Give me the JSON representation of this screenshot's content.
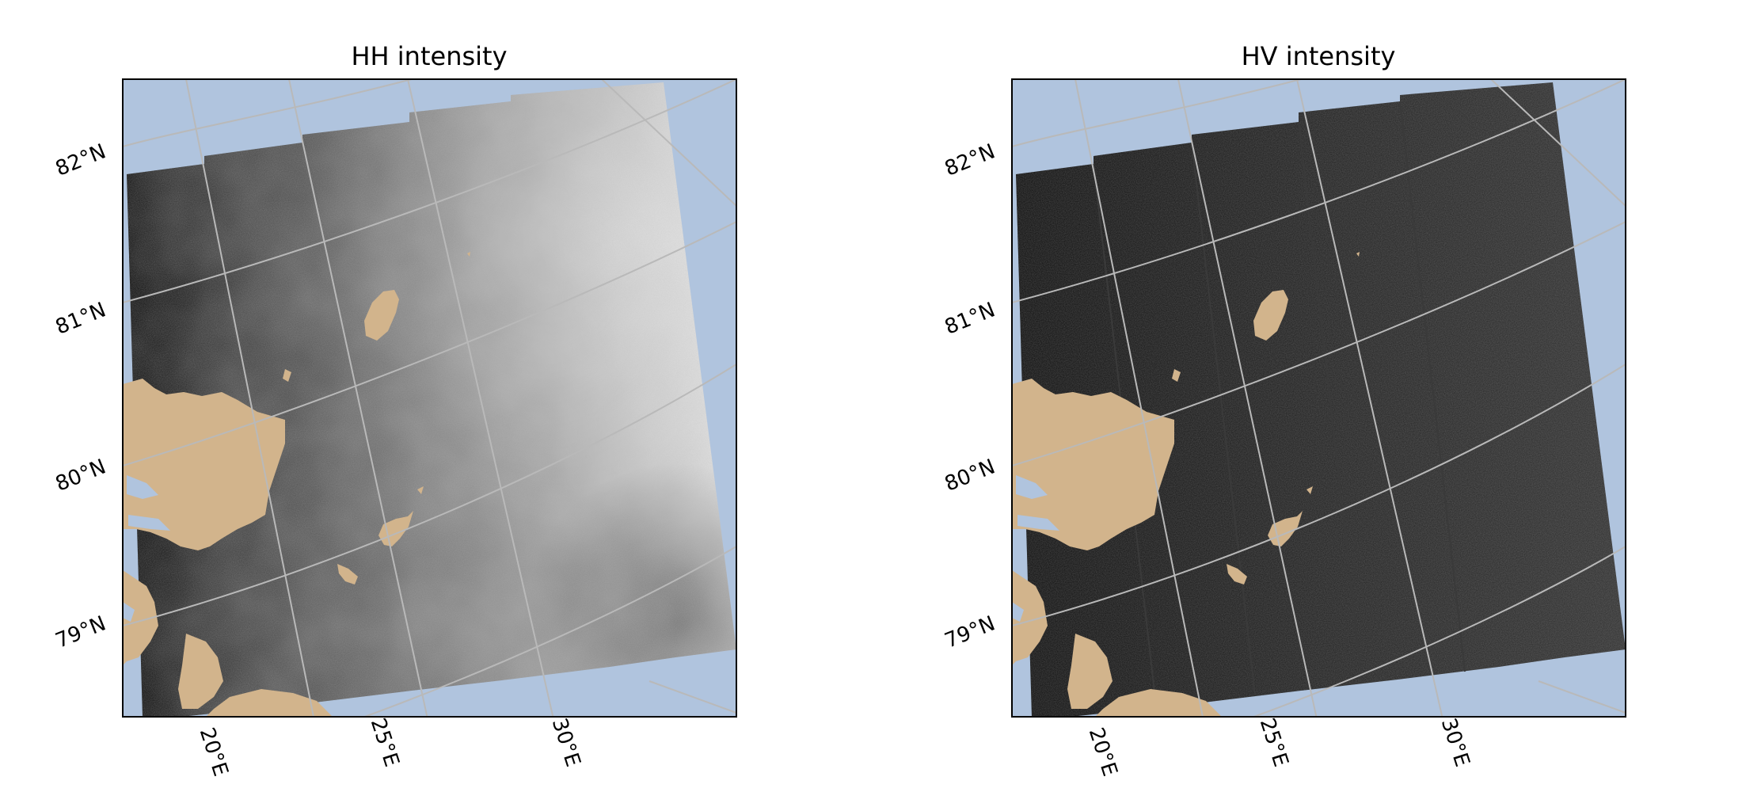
{
  "figure": {
    "panels": [
      {
        "id": "hh",
        "title": "HH intensity",
        "latitude_labels": [
          "82°N",
          "81°N",
          "80°N",
          "79°N"
        ],
        "longitude_labels": [
          "20°E",
          "25°E",
          "30°E"
        ]
      },
      {
        "id": "hv",
        "title": "HV intensity",
        "latitude_labels": [
          "82°N",
          "81°N",
          "80°N",
          "79°N"
        ],
        "longitude_labels": [
          "20°E",
          "25°E",
          "30°E"
        ]
      }
    ]
  },
  "colors": {
    "ocean": "#b0c4de",
    "land": "#d2b48c",
    "gridline": "#b9b9b9",
    "frame": "#000000"
  }
}
